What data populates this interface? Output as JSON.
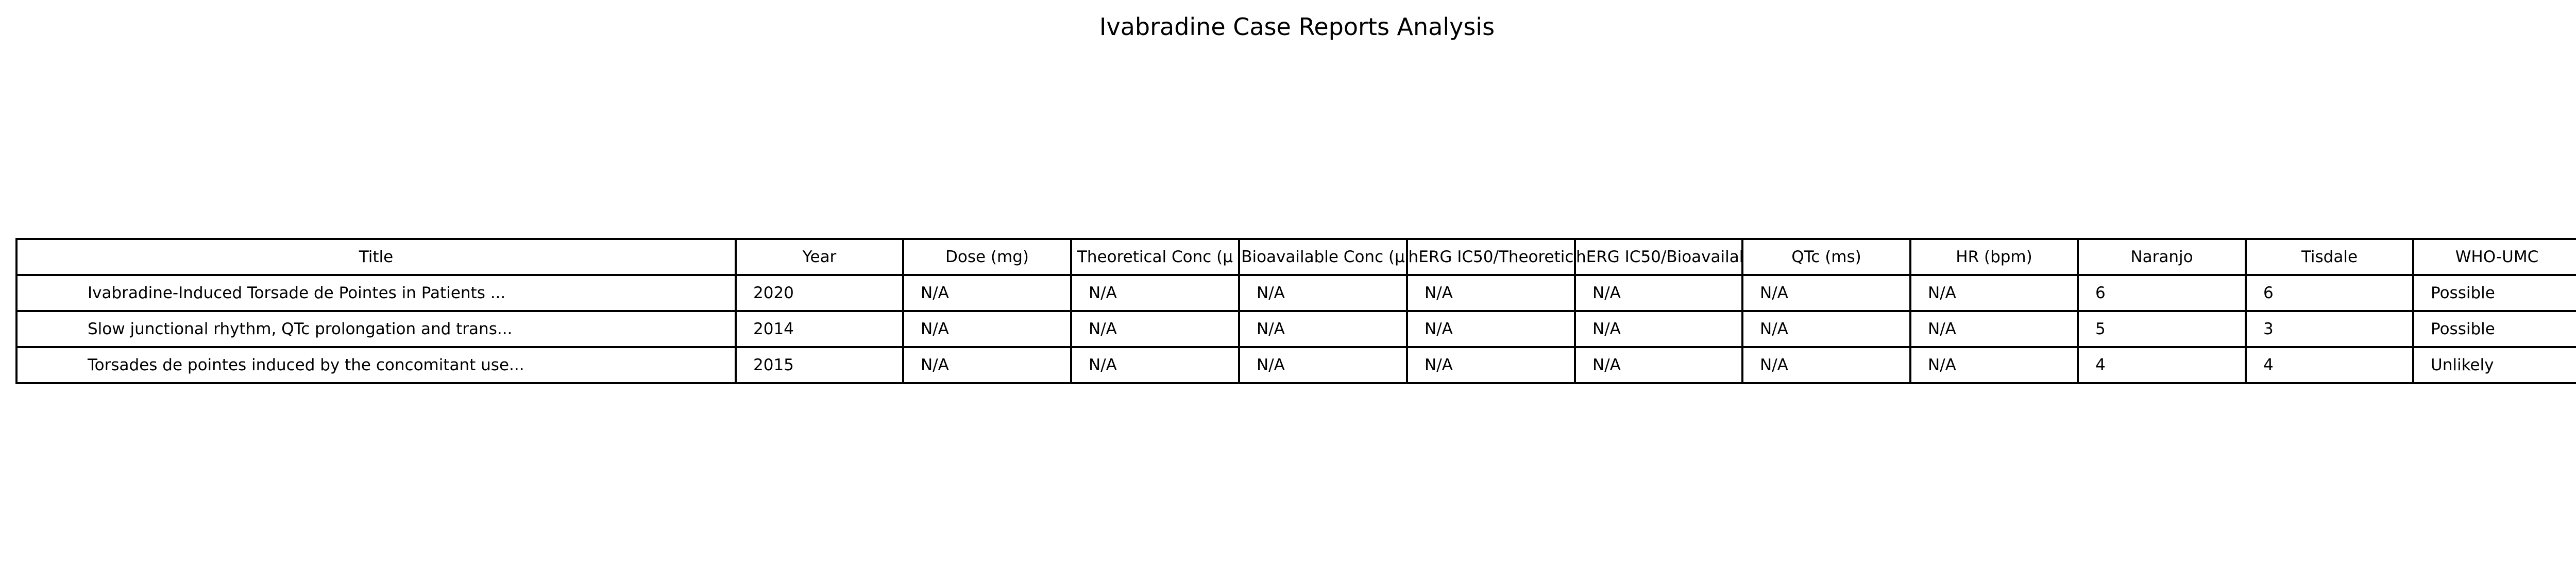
{
  "chart_data": {
    "type": "table",
    "title": "Ivabradine Case Reports Analysis",
    "columns": [
      "Title",
      "Year",
      "Dose (mg)",
      "Theoretical Conc (μ",
      "Bioavailable Conc (μ",
      "hERG IC50/Theoretic",
      "hERG IC50/Bioavailab",
      "QTc (ms)",
      "HR (bpm)",
      "Naranjo",
      "Tisdale",
      "WHO-UMC"
    ],
    "rows": [
      [
        "Ivabradine-Induced Torsade de Pointes in Patients ...",
        "2020",
        "N/A",
        "N/A",
        "N/A",
        "N/A",
        "N/A",
        "N/A",
        "N/A",
        "6",
        "6",
        "Possible"
      ],
      [
        "Slow junctional rhythm, QTc prolongation and trans...",
        "2014",
        "N/A",
        "N/A",
        "N/A",
        "N/A",
        "N/A",
        "N/A",
        "N/A",
        "5",
        "3",
        "Possible"
      ],
      [
        "Torsades de pointes induced by the concomitant use...",
        "2015",
        "N/A",
        "N/A",
        "N/A",
        "N/A",
        "N/A",
        "N/A",
        "N/A",
        "4",
        "4",
        "Unlikely"
      ]
    ]
  }
}
